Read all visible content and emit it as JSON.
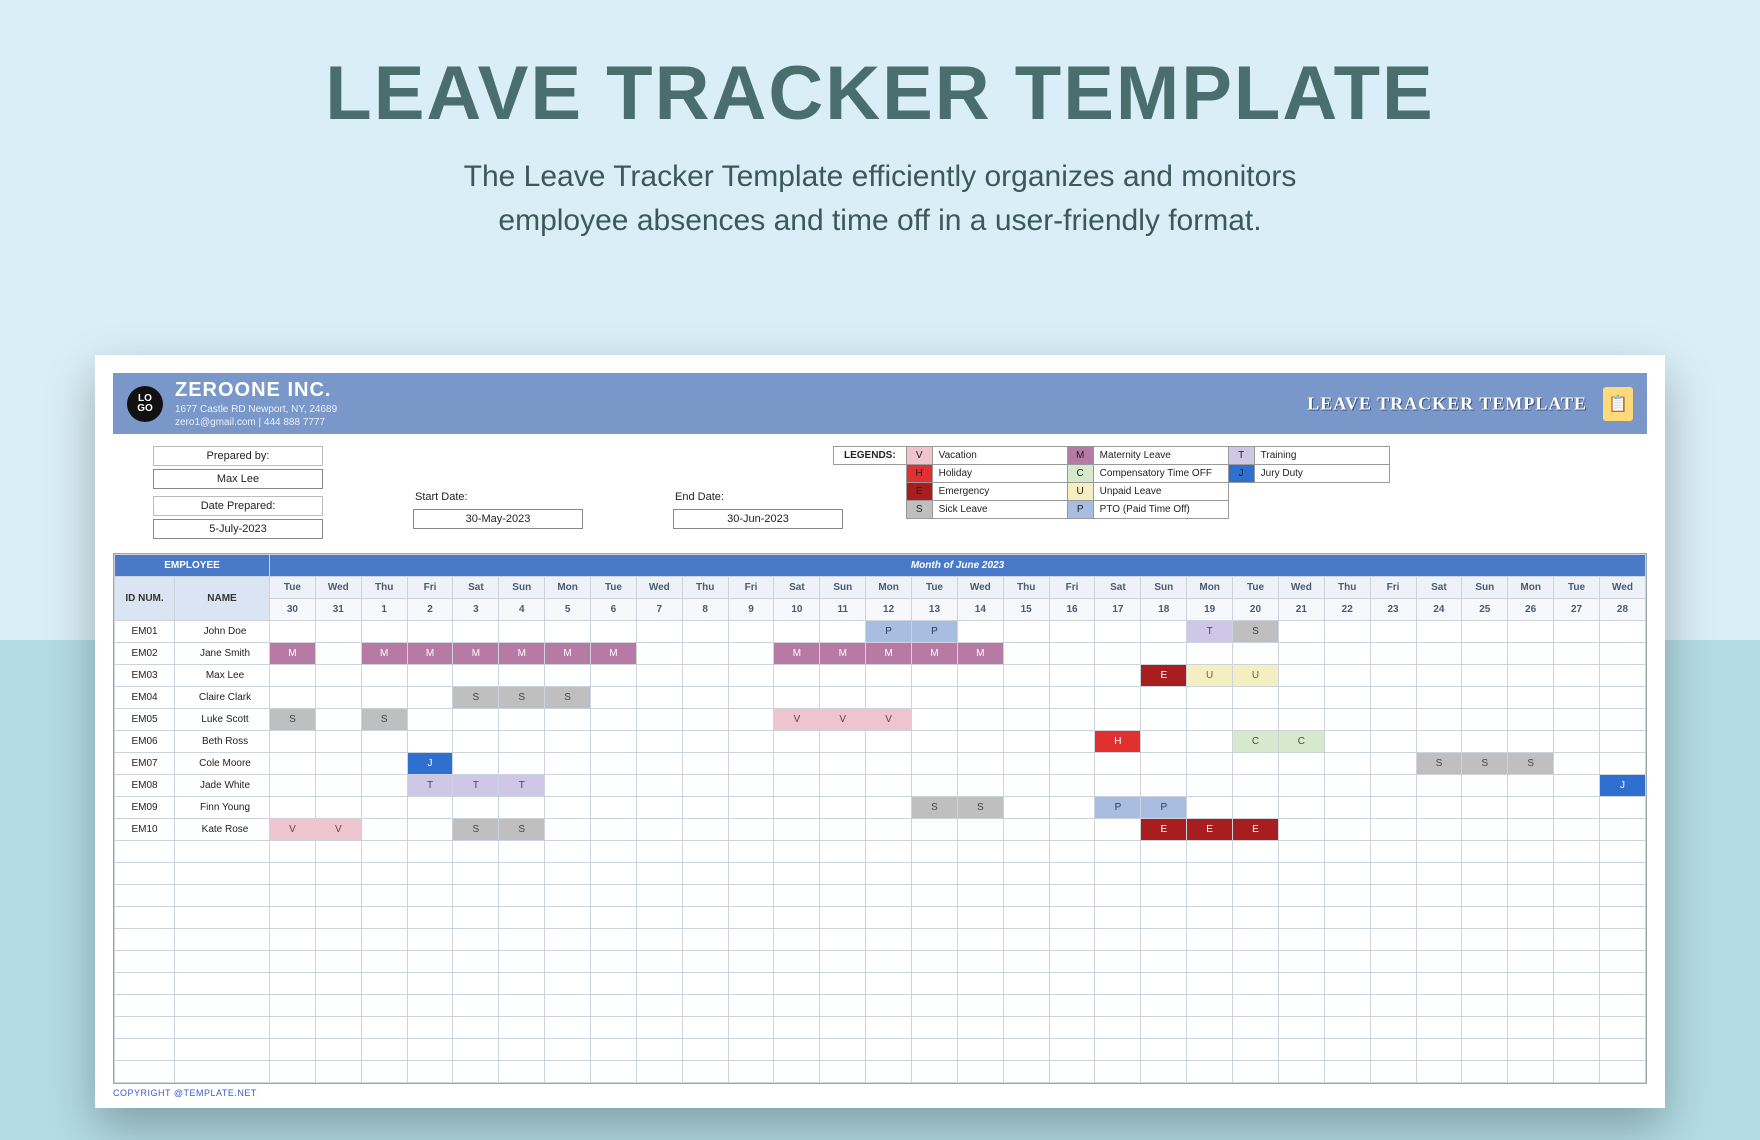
{
  "page": {
    "bg_top": "#d9eef7",
    "bg_bottom": "#b3dce5",
    "hero_title": "LEAVE TRACKER TEMPLATE",
    "hero_title_color": "#4a6e6e",
    "hero_title_fontsize": 76,
    "hero_sub": "The Leave Tracker Template efficiently organizes and monitors\nemployee absences and time off in a user-friendly format.",
    "hero_sub_color": "#3c5858",
    "hero_sub_fontsize": 30
  },
  "company": {
    "logo_text": "LO\nGO",
    "name": "ZEROONE INC.",
    "address_line1": "1677 Castle RD Newport, NY, 24689",
    "address_line2": "zero1@gmail.com | 444 888 7777",
    "bar_bg": "#7a97c9",
    "bar_title": "LEAVE TRACKER TEMPLATE",
    "icon_glyph": "📋"
  },
  "meta": {
    "prepared_by_label": "Prepared by:",
    "prepared_by_value": "Max Lee",
    "date_prepared_label": "Date Prepared:",
    "date_prepared_value": "5-July-2023",
    "start_date_label": "Start Date:",
    "start_date_value": "30-May-2023",
    "end_date_label": "End Date:",
    "end_date_value": "30-Jun-2023"
  },
  "legend": {
    "title": "LEGENDS:",
    "rows": [
      [
        {
          "code": "V",
          "label": "Vacation",
          "color": "#eec5cf"
        },
        {
          "code": "M",
          "label": "Maternity Leave",
          "color": "#b77aa4"
        },
        {
          "code": "T",
          "label": "Training",
          "color": "#cfc7e6"
        }
      ],
      [
        {
          "code": "H",
          "label": "Holiday",
          "color": "#e03030"
        },
        {
          "code": "C",
          "label": "Compensatory Time OFF",
          "color": "#d7e9cd"
        },
        {
          "code": "J",
          "label": "Jury Duty",
          "color": "#2f6fd0"
        }
      ],
      [
        {
          "code": "E",
          "label": "Emergency",
          "color": "#a81e1e"
        },
        {
          "code": "U",
          "label": "Unpaid Leave",
          "color": "#f4eec0"
        },
        null
      ],
      [
        {
          "code": "S",
          "label": "Sick Leave",
          "color": "#bfbfbf"
        },
        {
          "code": "P",
          "label": "PTO (Paid Time Off)",
          "color": "#a8bde0"
        },
        null
      ]
    ]
  },
  "calendar": {
    "employee_header": "EMPLOYEE",
    "id_header": "ID NUM.",
    "name_header": "NAME",
    "month_title": "Month of  June 2023",
    "header_bg": "#4a79c7",
    "subheader_bg": "#dbe4f2",
    "dow_bg": "#eef2f8",
    "dates": [
      {
        "dow": "Tue",
        "num": "30"
      },
      {
        "dow": "Wed",
        "num": "31"
      },
      {
        "dow": "Thu",
        "num": "1"
      },
      {
        "dow": "Fri",
        "num": "2"
      },
      {
        "dow": "Sat",
        "num": "3"
      },
      {
        "dow": "Sun",
        "num": "4"
      },
      {
        "dow": "Mon",
        "num": "5"
      },
      {
        "dow": "Tue",
        "num": "6"
      },
      {
        "dow": "Wed",
        "num": "7"
      },
      {
        "dow": "Thu",
        "num": "8"
      },
      {
        "dow": "Fri",
        "num": "9"
      },
      {
        "dow": "Sat",
        "num": "10"
      },
      {
        "dow": "Sun",
        "num": "11"
      },
      {
        "dow": "Mon",
        "num": "12"
      },
      {
        "dow": "Tue",
        "num": "13"
      },
      {
        "dow": "Wed",
        "num": "14"
      },
      {
        "dow": "Thu",
        "num": "15"
      },
      {
        "dow": "Fri",
        "num": "16"
      },
      {
        "dow": "Sat",
        "num": "17"
      },
      {
        "dow": "Sun",
        "num": "18"
      },
      {
        "dow": "Mon",
        "num": "19"
      },
      {
        "dow": "Tue",
        "num": "20"
      },
      {
        "dow": "Wed",
        "num": "21"
      },
      {
        "dow": "Thu",
        "num": "22"
      },
      {
        "dow": "Fri",
        "num": "23"
      },
      {
        "dow": "Sat",
        "num": "24"
      },
      {
        "dow": "Sun",
        "num": "25"
      },
      {
        "dow": "Mon",
        "num": "26"
      },
      {
        "dow": "Tue",
        "num": "27"
      },
      {
        "dow": "Wed",
        "num": "28"
      }
    ],
    "employees": [
      {
        "id": "EM01",
        "name": "John Doe",
        "leaves": [
          {
            "i": 13,
            "code": "P"
          },
          {
            "i": 14,
            "code": "P"
          },
          {
            "i": 20,
            "code": "T"
          },
          {
            "i": 21,
            "code": "S"
          }
        ]
      },
      {
        "id": "EM02",
        "name": "Jane Smith",
        "leaves": [
          {
            "i": 0,
            "code": "M"
          },
          {
            "i": 2,
            "code": "M"
          },
          {
            "i": 3,
            "code": "M"
          },
          {
            "i": 4,
            "code": "M"
          },
          {
            "i": 5,
            "code": "M"
          },
          {
            "i": 6,
            "code": "M"
          },
          {
            "i": 7,
            "code": "M"
          },
          {
            "i": 11,
            "code": "M"
          },
          {
            "i": 12,
            "code": "M"
          },
          {
            "i": 13,
            "code": "M"
          },
          {
            "i": 14,
            "code": "M"
          },
          {
            "i": 15,
            "code": "M"
          }
        ]
      },
      {
        "id": "EM03",
        "name": "Max Lee",
        "leaves": [
          {
            "i": 19,
            "code": "E"
          },
          {
            "i": 20,
            "code": "U"
          },
          {
            "i": 21,
            "code": "U"
          }
        ]
      },
      {
        "id": "EM04",
        "name": "Claire Clark",
        "leaves": [
          {
            "i": 4,
            "code": "S"
          },
          {
            "i": 5,
            "code": "S"
          },
          {
            "i": 6,
            "code": "S"
          }
        ]
      },
      {
        "id": "EM05",
        "name": "Luke Scott",
        "leaves": [
          {
            "i": 0,
            "code": "S"
          },
          {
            "i": 2,
            "code": "S"
          },
          {
            "i": 11,
            "code": "V"
          },
          {
            "i": 12,
            "code": "V"
          },
          {
            "i": 13,
            "code": "V"
          }
        ]
      },
      {
        "id": "EM06",
        "name": "Beth Ross",
        "leaves": [
          {
            "i": 18,
            "code": "H"
          },
          {
            "i": 21,
            "code": "C"
          },
          {
            "i": 22,
            "code": "C"
          }
        ]
      },
      {
        "id": "EM07",
        "name": "Cole Moore",
        "leaves": [
          {
            "i": 3,
            "code": "J"
          },
          {
            "i": 25,
            "code": "S"
          },
          {
            "i": 26,
            "code": "S"
          },
          {
            "i": 27,
            "code": "S"
          }
        ]
      },
      {
        "id": "EM08",
        "name": "Jade White",
        "leaves": [
          {
            "i": 3,
            "code": "T"
          },
          {
            "i": 4,
            "code": "T"
          },
          {
            "i": 5,
            "code": "T"
          },
          {
            "i": 29,
            "code": "J"
          }
        ]
      },
      {
        "id": "EM09",
        "name": "Finn Young",
        "leaves": [
          {
            "i": 14,
            "code": "S"
          },
          {
            "i": 15,
            "code": "S"
          },
          {
            "i": 18,
            "code": "P"
          },
          {
            "i": 19,
            "code": "P"
          }
        ]
      },
      {
        "id": "EM10",
        "name": "Kate Rose",
        "leaves": [
          {
            "i": 0,
            "code": "V"
          },
          {
            "i": 1,
            "code": "V"
          },
          {
            "i": 4,
            "code": "S"
          },
          {
            "i": 5,
            "code": "S"
          },
          {
            "i": 19,
            "code": "E"
          },
          {
            "i": 20,
            "code": "E"
          },
          {
            "i": 21,
            "code": "E"
          }
        ]
      }
    ],
    "empty_rows": 11,
    "code_colors": {
      "V": "#eec5cf",
      "M": "#b77aa4",
      "T": "#cfc7e6",
      "H": "#e03030",
      "C": "#d7e9cd",
      "J": "#2f6fd0",
      "E": "#a81e1e",
      "U": "#f4eec0",
      "S": "#bfbfbf",
      "P": "#a8bde0"
    },
    "code_text_colors": {
      "V": "#6b3b47",
      "M": "#ffffff",
      "T": "#4a3f66",
      "H": "#ffffff",
      "C": "#3a5530",
      "J": "#ffffff",
      "E": "#ffffff",
      "U": "#6b6330",
      "S": "#444444",
      "P": "#2a3c60"
    }
  },
  "footer": {
    "copyright": "COPYRIGHT @TEMPLATE.NET"
  }
}
